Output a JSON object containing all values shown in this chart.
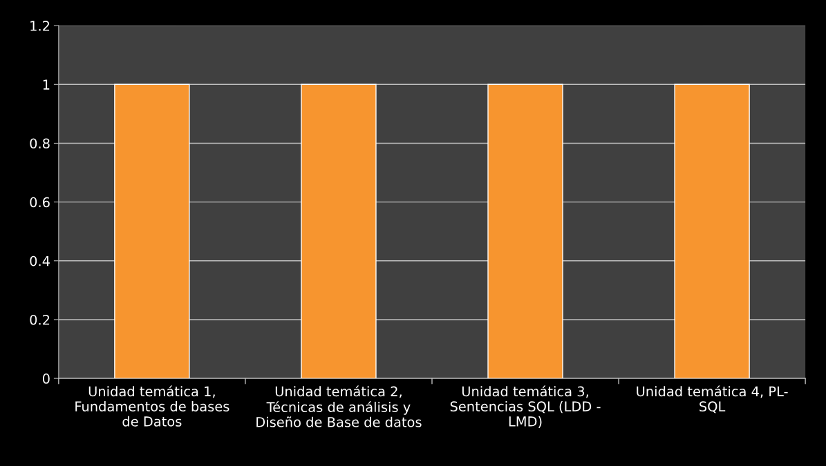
{
  "chart_data": {
    "type": "bar",
    "categories": [
      "Unidad temática 1,\nFundamentos de bases\nde Datos",
      "Unidad temática 2,\nTécnicas de análisis y\nDiseño de Base de datos",
      "Unidad temática 3,\nSentencias SQL (LDD -\nLMD)",
      "Unidad temática 4, PL-\nSQL"
    ],
    "values": [
      1,
      1,
      1,
      1
    ],
    "color": "#f7952f",
    "ylim": [
      0,
      1.2
    ],
    "yticks": [
      0,
      0.2,
      0.4,
      0.6,
      0.8,
      1,
      1.2
    ],
    "grid": "y",
    "legend": false
  }
}
